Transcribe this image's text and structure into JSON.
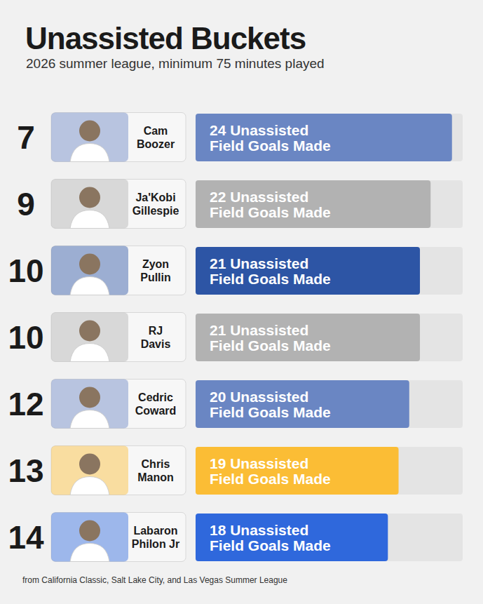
{
  "chart_data": {
    "type": "bar",
    "orientation": "horizontal",
    "title": "Unassisted Buckets",
    "subtitle": "2026 summer league, minimum 75 minutes played",
    "footnote": "from California Classic, Salt Lake City, and Las Vegas Summer League",
    "categories": [
      "Cam Boozer",
      "Ja'Kobi Gillespie",
      "Zyon Pullin",
      "RJ Davis",
      "Cedric Coward",
      "Chris Manon",
      "Labaron Philon Jr"
    ],
    "ranks": [
      7,
      9,
      10,
      10,
      12,
      13,
      14
    ],
    "values": [
      24,
      22,
      21,
      21,
      20,
      19,
      18
    ],
    "value_labels": [
      "24 Unassisted Field Goals Made",
      "22 Unassisted Field Goals Made",
      "21 Unassisted Field Goals Made",
      "21 Unassisted Field Goals Made",
      "20 Unassisted Field Goals Made",
      "19 Unassisted Field Goals Made",
      "18 Unassisted Field Goals Made"
    ],
    "colors": [
      "#6a86c3",
      "#b2b2b2",
      "#2d55a5",
      "#b2b2b2",
      "#6a86c3",
      "#fbbd35",
      "#2f68dc"
    ],
    "xlim": [
      0,
      25
    ],
    "data_labels": true,
    "tick_labels": "y",
    "grid": false
  }
}
